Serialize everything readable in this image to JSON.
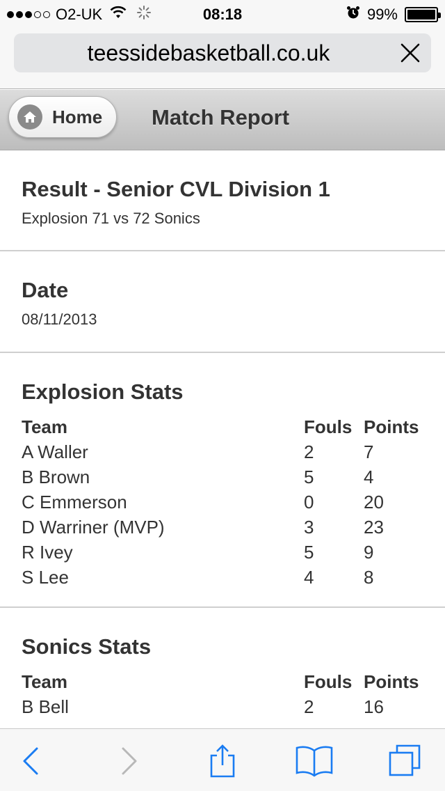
{
  "status_bar": {
    "carrier": "O2-UK",
    "time": "08:18",
    "battery": "99%",
    "battery_level": 0.99
  },
  "url_bar": {
    "url": "teessidebasketball.co.uk"
  },
  "header": {
    "home_label": "Home",
    "title": "Match Report"
  },
  "result": {
    "title": "Result - Senior CVL Division 1",
    "score": "Explosion 71 vs 72 Sonics"
  },
  "date": {
    "title": "Date",
    "value": "08/11/2013"
  },
  "explosion_stats": {
    "title": "Explosion Stats",
    "columns": [
      "Team",
      "Fouls",
      "Points"
    ],
    "rows": [
      {
        "name": "A Waller",
        "fouls": "2",
        "points": "7"
      },
      {
        "name": "B Brown",
        "fouls": "5",
        "points": "4"
      },
      {
        "name": "C Emmerson",
        "fouls": "0",
        "points": "20"
      },
      {
        "name": "D Warriner (MVP)",
        "fouls": "3",
        "points": "23"
      },
      {
        "name": "R Ivey",
        "fouls": "5",
        "points": "9"
      },
      {
        "name": "S Lee",
        "fouls": "4",
        "points": "8"
      }
    ]
  },
  "sonics_stats": {
    "title": "Sonics Stats",
    "columns": [
      "Team",
      "Fouls",
      "Points"
    ],
    "rows": [
      {
        "name": "B Bell",
        "fouls": "2",
        "points": "16"
      }
    ]
  },
  "toolbar": {
    "icons": [
      "back-icon",
      "forward-icon",
      "share-icon",
      "bookmarks-icon",
      "tabs-icon"
    ]
  },
  "colors": {
    "accent": "#1a7cf2",
    "disabled": "#b8b8b8"
  }
}
